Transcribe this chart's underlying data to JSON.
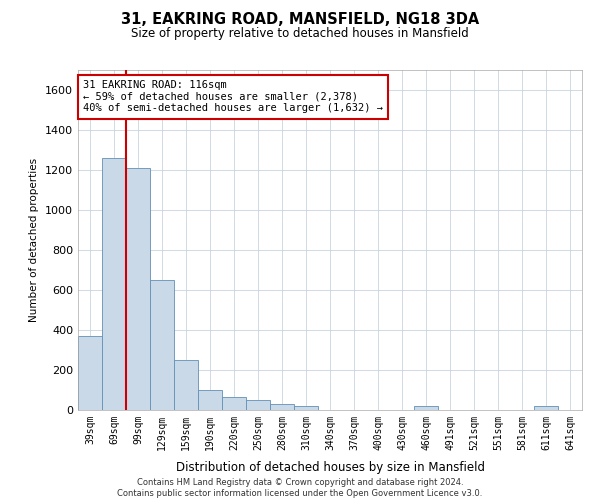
{
  "title": "31, EAKRING ROAD, MANSFIELD, NG18 3DA",
  "subtitle": "Size of property relative to detached houses in Mansfield",
  "xlabel": "Distribution of detached houses by size in Mansfield",
  "ylabel": "Number of detached properties",
  "property_label": "31 EAKRING ROAD: 116sqm",
  "annotation_line1": "← 59% of detached houses are smaller (2,378)",
  "annotation_line2": "40% of semi-detached houses are larger (1,632) →",
  "bar_color": "#c9d9e8",
  "bar_edge_color": "#6090b8",
  "marker_line_color": "#cc0000",
  "grid_color": "#c8d4de",
  "background_color": "#ffffff",
  "categories": [
    "39sqm",
    "69sqm",
    "99sqm",
    "129sqm",
    "159sqm",
    "190sqm",
    "220sqm",
    "250sqm",
    "280sqm",
    "310sqm",
    "340sqm",
    "370sqm",
    "400sqm",
    "430sqm",
    "460sqm",
    "491sqm",
    "521sqm",
    "551sqm",
    "581sqm",
    "611sqm",
    "641sqm"
  ],
  "values": [
    370,
    1260,
    1210,
    650,
    248,
    100,
    65,
    50,
    30,
    20,
    0,
    0,
    0,
    0,
    20,
    0,
    0,
    0,
    0,
    20,
    0
  ],
  "marker_bin_index": 2,
  "ylim": [
    0,
    1700
  ],
  "yticks": [
    0,
    200,
    400,
    600,
    800,
    1000,
    1200,
    1400,
    1600
  ],
  "footer_line1": "Contains HM Land Registry data © Crown copyright and database right 2024.",
  "footer_line2": "Contains public sector information licensed under the Open Government Licence v3.0."
}
